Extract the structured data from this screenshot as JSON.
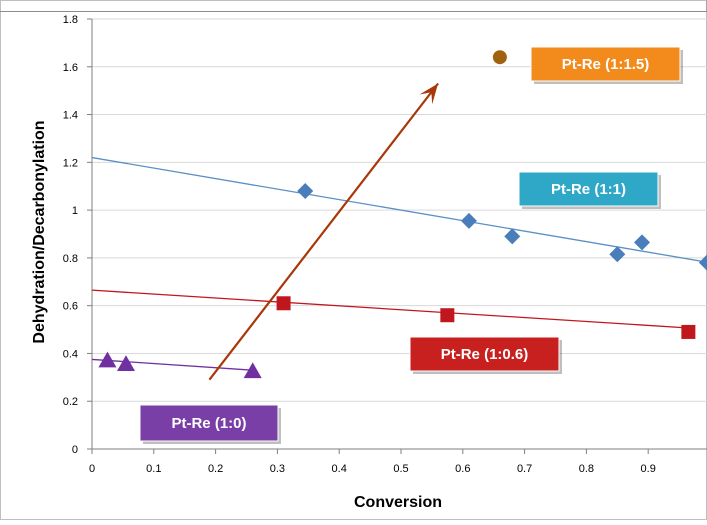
{
  "chart_data": {
    "type": "scatter",
    "title": "",
    "xlabel": "Conversion",
    "ylabel": "Dehydration/Decarbonylation",
    "xlim": [
      0,
      1.0
    ],
    "ylim": [
      0,
      1.8
    ],
    "xticks": [
      "0",
      "0.1",
      "0.2",
      "0.3",
      "0.4",
      "0.5",
      "0.6",
      "0.7",
      "0.8",
      "0.9"
    ],
    "yticks": [
      "0",
      "0.2",
      "0.4",
      "0.6",
      "0.8",
      "1",
      "1.2",
      "1.4",
      "1.6",
      "1.8"
    ],
    "grid": "horizontal",
    "series": [
      {
        "name": "Pt-Re (1:1.5)",
        "marker": "circle",
        "color": "#A0620F",
        "label_color": "#F28A1C",
        "points": [
          [
            0.66,
            1.64
          ]
        ]
      },
      {
        "name": "Pt-Re (1:1)",
        "marker": "diamond",
        "color": "#4A7EBB",
        "label_color": "#2FA8C8",
        "points": [
          [
            0.345,
            1.08
          ],
          [
            0.61,
            0.955
          ],
          [
            0.68,
            0.89
          ],
          [
            0.85,
            0.815
          ],
          [
            0.89,
            0.865
          ],
          [
            0.995,
            0.78
          ]
        ],
        "trendline": [
          [
            0,
            1.22
          ],
          [
            1.0,
            0.78
          ]
        ],
        "trend_color": "#5B8FC7"
      },
      {
        "name": "Pt-Re (1:0.6)",
        "marker": "square",
        "color": "#C0171E",
        "label_color": "#C8201F",
        "points": [
          [
            0.31,
            0.61
          ],
          [
            0.575,
            0.56
          ],
          [
            0.965,
            0.49
          ]
        ],
        "trendline": [
          [
            0,
            0.665
          ],
          [
            0.975,
            0.505
          ]
        ],
        "trend_color": "#C0171E"
      },
      {
        "name": "Pt-Re (1:0)",
        "marker": "triangle",
        "color": "#7030A0",
        "label_color": "#7A3FA6",
        "points": [
          [
            0.025,
            0.37
          ],
          [
            0.055,
            0.355
          ],
          [
            0.26,
            0.325
          ]
        ],
        "trendline": [
          [
            0,
            0.375
          ],
          [
            0.26,
            0.33
          ]
        ],
        "trend_color": "#7030A0"
      }
    ],
    "arrow": {
      "from": [
        0.19,
        0.29
      ],
      "to": [
        0.56,
        1.53
      ],
      "color": "#A8380A"
    }
  }
}
